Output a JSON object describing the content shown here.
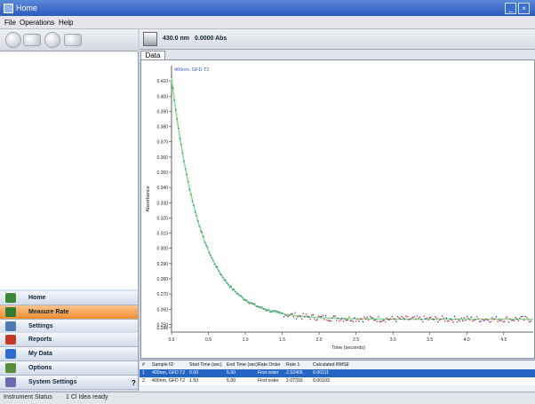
{
  "window": {
    "title": "Home"
  },
  "menu": [
    "File",
    "Operations",
    "Help"
  ],
  "toolbar": {
    "wavelength": "430.0 nm",
    "absorbance_readout": "0.0000 Abs"
  },
  "tabs": {
    "data": "Data"
  },
  "nav": [
    {
      "label": "Home",
      "icon": "home-icon",
      "color": "#3b8a3b"
    },
    {
      "label": "Measure Rate",
      "icon": "measure-rate-icon",
      "color": "#2e7d32",
      "active": true
    },
    {
      "label": "Settings",
      "icon": "settings-icon",
      "color": "#4a7ab0"
    },
    {
      "label": "Reports",
      "icon": "reports-icon",
      "color": "#c23b22"
    },
    {
      "label": "My Data",
      "icon": "my-data-icon",
      "color": "#2f6bd1"
    },
    {
      "label": "Options",
      "icon": "options-icon",
      "color": "#5a8f3a"
    },
    {
      "label": "System Settings",
      "icon": "system-settings-icon",
      "color": "#6b6bb0"
    }
  ],
  "nav_help": "?",
  "status": {
    "left": "Instrument Status",
    "right": "1 Cl Idea ready"
  },
  "results_table": {
    "headers": [
      "#",
      "Sample ID",
      "Start Time (sec)",
      "End Time (sec)",
      "Rate Order",
      "Rate 1",
      "Calculated RMSE"
    ],
    "rows": [
      [
        "1",
        "400nm, GFD T2",
        "0.00",
        "5.00",
        "First order",
        "2.52405",
        "0.00111"
      ],
      [
        "2",
        "400nm, GFD T2",
        "1.50",
        "5.00",
        "First order",
        "2.07316",
        "0.00103"
      ]
    ]
  },
  "chart_data": {
    "type": "scatter",
    "series_name": "400nm, GFD T2",
    "xlabel": "Time (seconds)",
    "ylabel": "Absorbance",
    "xlim": [
      0,
      4.9
    ],
    "ylim": [
      0.245,
      0.42
    ],
    "x_ticks": [
      "0.0",
      "0.5",
      "1.0",
      "1.5",
      "2.0",
      "2.5",
      "3.0",
      "3.5",
      "4.0",
      "4.5"
    ],
    "y_ticks": [
      "0.410",
      "0.400",
      "0.390",
      "0.380",
      "0.370",
      "0.360",
      "0.350",
      "0.340",
      "0.330",
      "0.320",
      "0.310",
      "0.300",
      "0.290",
      "0.280",
      "0.270",
      "0.260",
      "0.250",
      "0.248"
    ],
    "fit": {
      "model": "first-order decay",
      "a0": 0.4125,
      "ainf": 0.2535,
      "k": 2.52
    },
    "colors": {
      "points_early": "#2f8b6e",
      "points_late": "#d04040",
      "points_late_alt": "#2a3fc0",
      "fit_line": "#8fdc9c"
    }
  }
}
